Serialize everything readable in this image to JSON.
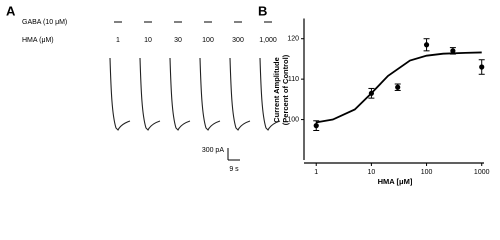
{
  "panel_a": {
    "label": "A",
    "gaba_label": "GABA (10 μM)",
    "hma_label": "HMA (μM)",
    "concentrations": [
      "1",
      "10",
      "30",
      "100",
      "300",
      "1,000"
    ],
    "scale_current": "300 pA",
    "scale_time": "9 s"
  },
  "chart_data": {
    "type": "scatter",
    "panel_label": "B",
    "y_label": [
      "Current Amplitude",
      "(Percent of Control)"
    ],
    "x_label": "HMA [μM]",
    "x": [
      1,
      10,
      30,
      100,
      300,
      1000
    ],
    "values": [
      98.5,
      106.5,
      108,
      118.5,
      117,
      113
    ],
    "errors": [
      1.2,
      1.2,
      0.8,
      1.5,
      0.8,
      1.8
    ],
    "fit": {
      "x": [
        1,
        2,
        5,
        10,
        20,
        50,
        100,
        200,
        500,
        1000
      ],
      "values": [
        99.3,
        100,
        102.5,
        106.5,
        110.8,
        114.6,
        115.8,
        116.3,
        116.5,
        116.6
      ]
    },
    "xscale": "log",
    "xlim": [
      0.6,
      1100
    ],
    "ylim": [
      90,
      125
    ],
    "xticks": [
      1,
      10,
      100,
      1000
    ],
    "yticks": [
      100,
      110,
      120
    ],
    "color": "#000000"
  }
}
